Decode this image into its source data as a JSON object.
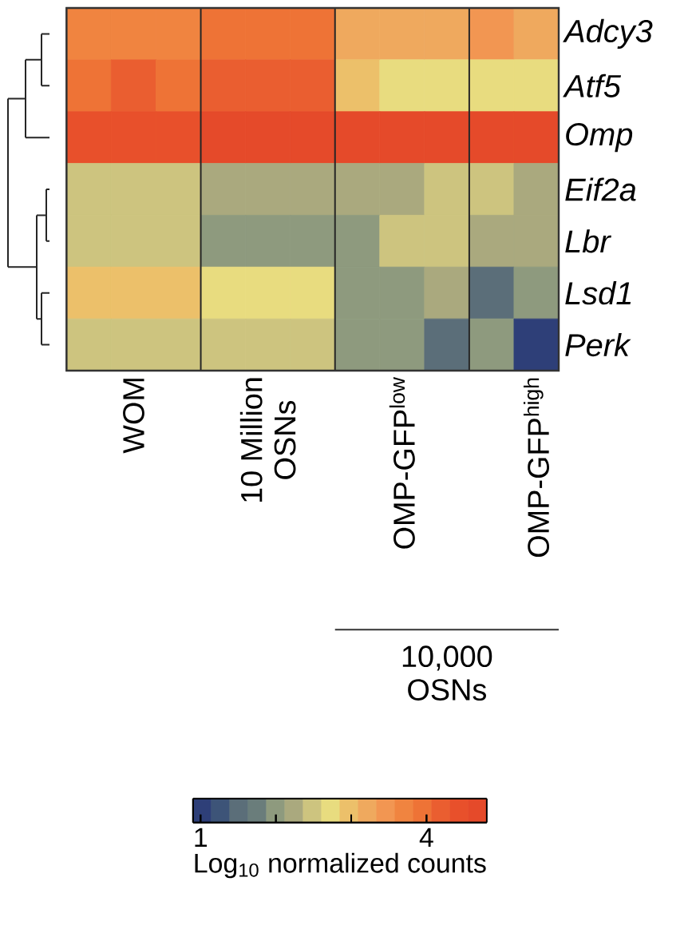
{
  "chart_data": {
    "type": "heatmap",
    "categories": [
      null,
      "WOM",
      null,
      null,
      "10 Million OSNs",
      null,
      null,
      "OMP-GFP$^{low}$",
      null,
      null,
      "OMP-GFP$^{high}$"
    ],
    "y_categories": [
      "Adcy3",
      "Atf5",
      "Omp",
      "Eif2a",
      "Lbr",
      "Lsd1",
      "Perk"
    ],
    "cells": [
      [
        3.7,
        3.7,
        3.7,
        3.95,
        3.95,
        3.95,
        3.2,
        3.2,
        3.2,
        3.45,
        3.2
      ],
      [
        3.95,
        4.2,
        3.95,
        4.2,
        4.2,
        4.2,
        3.0,
        2.75,
        2.75,
        2.75,
        2.75
      ],
      [
        4.45,
        4.45,
        4.45,
        4.7,
        4.7,
        4.7,
        4.7,
        4.7,
        4.7,
        4.7,
        4.7
      ],
      [
        2.5,
        2.5,
        2.5,
        2.25,
        2.25,
        2.25,
        2.25,
        2.25,
        2.5,
        2.5,
        2.25
      ],
      [
        2.5,
        2.5,
        2.5,
        2.0,
        2.0,
        2.0,
        2.0,
        2.5,
        2.5,
        2.25,
        2.25
      ],
      [
        3.0,
        3.0,
        3.0,
        2.75,
        2.75,
        2.75,
        2.0,
        2.0,
        2.25,
        1.5,
        2.0
      ],
      [
        2.5,
        2.5,
        2.5,
        2.5,
        2.5,
        2.5,
        2.0,
        2.0,
        1.5,
        2.0,
        1.0
      ]
    ],
    "clim": [
      0.9,
      4.8
    ],
    "cticks": [
      1,
      {
        "value": 2,
        "label": null
      },
      {
        "value": 3,
        "label": null
      },
      4
    ],
    "clabel": "Log$_{10}$ normalized counts",
    "annotations": [
      "10,000 OSNs"
    ]
  }
}
